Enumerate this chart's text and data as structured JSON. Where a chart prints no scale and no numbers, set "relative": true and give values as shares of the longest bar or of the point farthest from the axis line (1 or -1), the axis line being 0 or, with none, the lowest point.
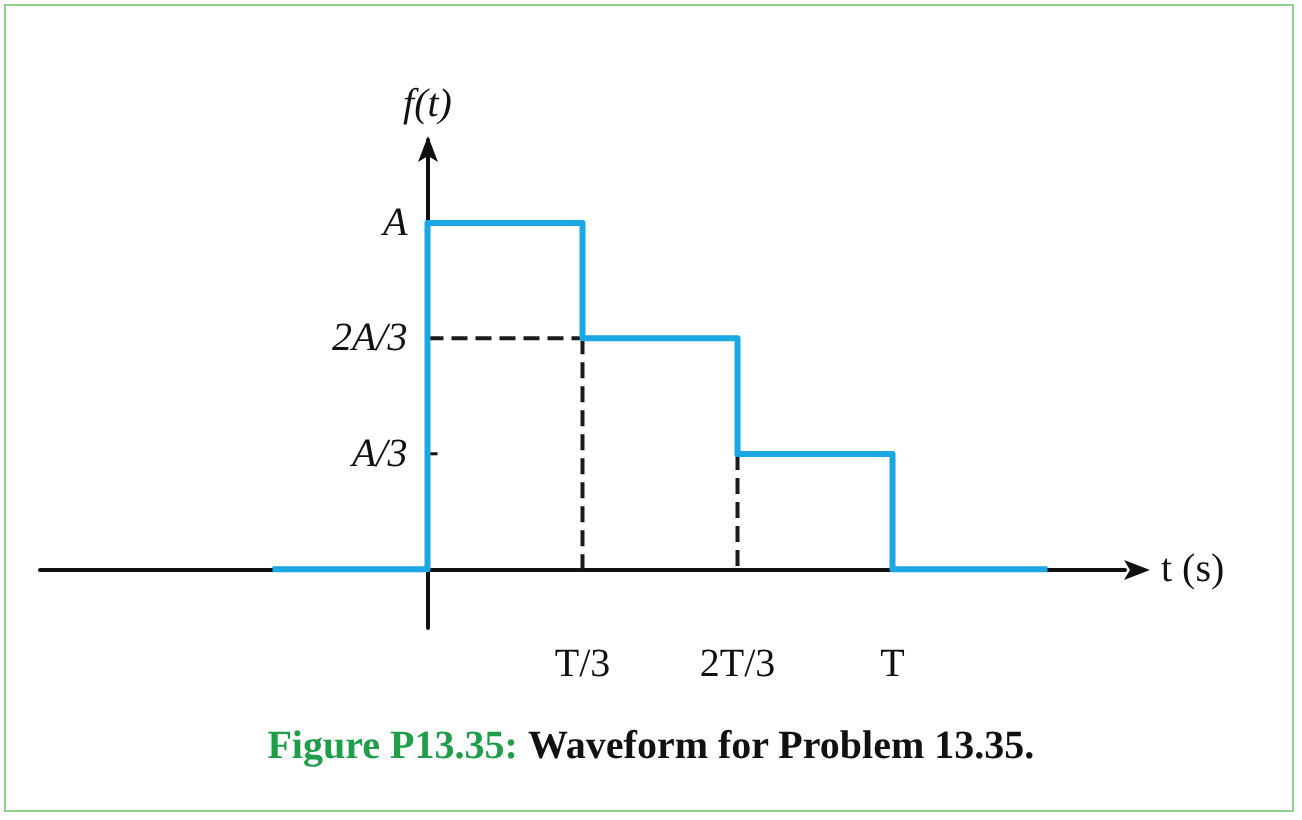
{
  "chart_data": {
    "type": "step",
    "title": "Figure P13.35:",
    "subtitle": "Waveform for Problem 13.35.",
    "xlabel": "t (s)",
    "ylabel": "f(t)",
    "categories": [
      null,
      null,
      null,
      "T/3",
      "2T/3",
      "T",
      null
    ],
    "relative": true,
    "annotations": [
      "A",
      "2A/3",
      "A/3"
    ],
    "grid": false,
    "marker": "none",
    "series": [
      {
        "color": "#1ba6e4",
        "line_style": "solid",
        "values": [
          null,
          0,
          1,
          0.667,
          0.333,
          0,
          0
        ]
      },
      {
        "type": "line",
        "color": "#1a1a1a",
        "line_style": "dashed",
        "values": [
          null,
          null,
          0.667,
          0.667,
          null,
          null,
          null
        ]
      },
      {
        "type": "line",
        "color": "#1a1a1a",
        "line_style": "dashed",
        "x": [
          "T/3",
          "T/3"
        ],
        "values": [
          0.667,
          0
        ]
      },
      {
        "type": "line",
        "color": "#1a1a1a",
        "line_style": "dashed",
        "x": [
          "2T/3",
          "2T/3"
        ],
        "values": [
          0.333,
          0
        ]
      }
    ]
  }
}
